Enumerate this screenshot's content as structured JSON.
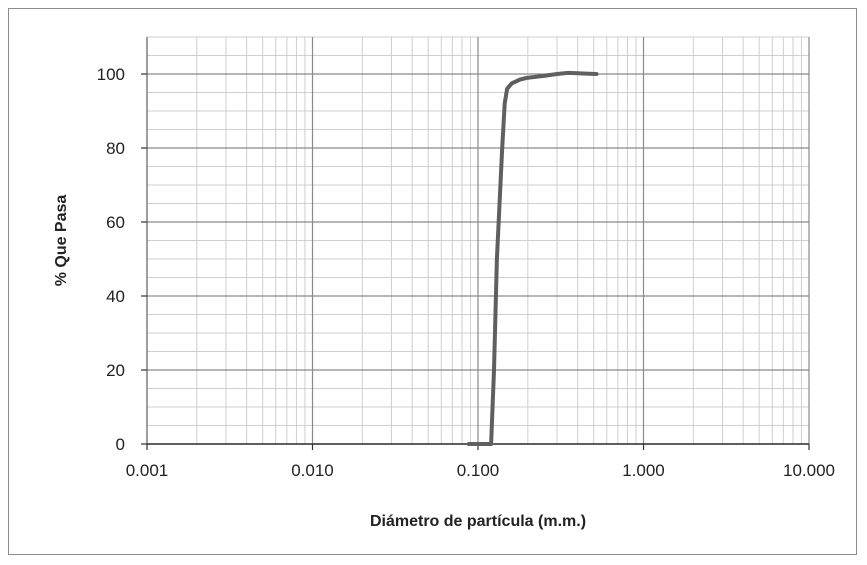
{
  "chart_data": {
    "type": "line",
    "title": "",
    "xlabel": "Diámetro de partícula (m.m.)",
    "ylabel": "% Que Pasa",
    "x_scale": "log",
    "xlim": [
      0.001,
      10
    ],
    "ylim": [
      0,
      110
    ],
    "x_ticks": [
      0.001,
      0.01,
      0.1,
      1,
      10
    ],
    "x_tick_labels": [
      "0.001",
      "0.010",
      "0.100",
      "1.000",
      "10.000"
    ],
    "y_ticks": [
      0,
      20,
      40,
      60,
      80,
      100
    ],
    "y_tick_labels": [
      "0",
      "20",
      "40",
      "60",
      "80",
      "100"
    ],
    "grid": true,
    "legend": "none",
    "series": [
      {
        "color": "#5f5f5f",
        "x": [
          0.088,
          0.1,
          0.12,
          0.125,
          0.13,
          0.14,
          0.145,
          0.15,
          0.16,
          0.18,
          0.2,
          0.25,
          0.3,
          0.35,
          0.4,
          0.45,
          0.52
        ],
        "y": [
          0,
          0,
          0,
          20,
          50,
          80,
          92,
          96,
          97.5,
          98.5,
          99,
          99.5,
          100,
          100.3,
          100.2,
          100.1,
          100
        ]
      }
    ]
  }
}
